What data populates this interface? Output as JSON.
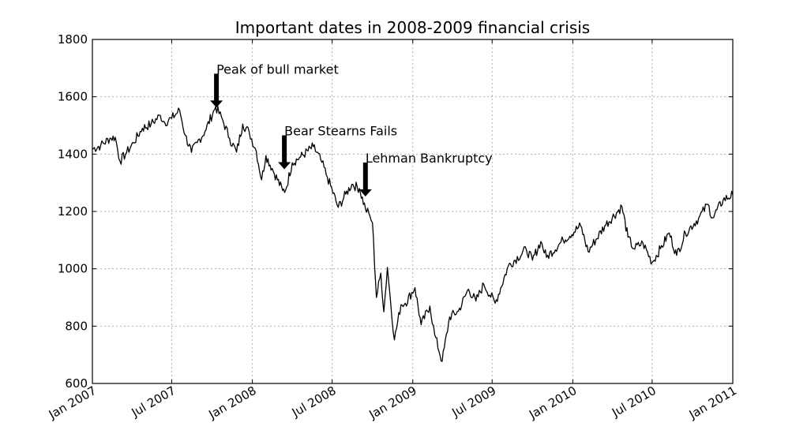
{
  "chart_data": {
    "type": "line",
    "title": "Important dates in 2008-2009 financial crisis",
    "xlabel": "",
    "ylabel": "",
    "xlim": [
      "2007-01-01",
      "2011-01-01"
    ],
    "ylim": [
      600,
      1800
    ],
    "grid": true,
    "yticks": [
      600,
      800,
      1000,
      1200,
      1400,
      1600,
      1800
    ],
    "xticks": [
      {
        "date": "2007-01-01",
        "label": "Jan 2007"
      },
      {
        "date": "2007-07-01",
        "label": "Jul 2007"
      },
      {
        "date": "2008-01-01",
        "label": "Jan 2008"
      },
      {
        "date": "2008-07-01",
        "label": "Jul 2008"
      },
      {
        "date": "2009-01-01",
        "label": "Jan 2009"
      },
      {
        "date": "2009-07-01",
        "label": "Jul 2009"
      },
      {
        "date": "2010-01-01",
        "label": "Jan 2010"
      },
      {
        "date": "2010-07-01",
        "label": "Jul 2010"
      },
      {
        "date": "2011-01-01",
        "label": "Jan 2011"
      }
    ],
    "series": [
      {
        "color": "#000000",
        "points": [
          [
            "2007-01-01",
            1418
          ],
          [
            "2007-01-20",
            1430
          ],
          [
            "2007-02-10",
            1455
          ],
          [
            "2007-02-22",
            1459
          ],
          [
            "2007-03-05",
            1375
          ],
          [
            "2007-03-20",
            1405
          ],
          [
            "2007-04-05",
            1440
          ],
          [
            "2007-04-25",
            1490
          ],
          [
            "2007-05-15",
            1505
          ],
          [
            "2007-06-05",
            1535
          ],
          [
            "2007-06-15",
            1510
          ],
          [
            "2007-07-01",
            1525
          ],
          [
            "2007-07-19",
            1553
          ],
          [
            "2007-08-01",
            1465
          ],
          [
            "2007-08-15",
            1406
          ],
          [
            "2007-08-28",
            1440
          ],
          [
            "2007-09-15",
            1480
          ],
          [
            "2007-10-09",
            1565
          ],
          [
            "2007-10-25",
            1520
          ],
          [
            "2007-11-10",
            1455
          ],
          [
            "2007-11-26",
            1407
          ],
          [
            "2007-12-10",
            1505
          ],
          [
            "2007-12-25",
            1475
          ],
          [
            "2008-01-10",
            1410
          ],
          [
            "2008-01-22",
            1310
          ],
          [
            "2008-02-01",
            1395
          ],
          [
            "2008-02-15",
            1350
          ],
          [
            "2008-03-10",
            1273
          ],
          [
            "2008-03-17",
            1275
          ],
          [
            "2008-04-01",
            1370
          ],
          [
            "2008-04-20",
            1390
          ],
          [
            "2008-05-19",
            1426
          ],
          [
            "2008-06-05",
            1380
          ],
          [
            "2008-06-20",
            1320
          ],
          [
            "2008-07-15",
            1214
          ],
          [
            "2008-08-01",
            1260
          ],
          [
            "2008-08-15",
            1295
          ],
          [
            "2008-09-01",
            1280
          ],
          [
            "2008-09-15",
            1210
          ],
          [
            "2008-09-25",
            1185
          ],
          [
            "2008-10-01",
            1160
          ],
          [
            "2008-10-10",
            900
          ],
          [
            "2008-10-20",
            985
          ],
          [
            "2008-10-27",
            850
          ],
          [
            "2008-11-04",
            1005
          ],
          [
            "2008-11-20",
            752
          ],
          [
            "2008-12-05",
            875
          ],
          [
            "2008-12-15",
            880
          ],
          [
            "2009-01-06",
            934
          ],
          [
            "2009-01-20",
            805
          ],
          [
            "2009-02-09",
            870
          ],
          [
            "2009-02-20",
            770
          ],
          [
            "2009-03-09",
            677
          ],
          [
            "2009-03-26",
            832
          ],
          [
            "2009-04-15",
            852
          ],
          [
            "2009-05-08",
            929
          ],
          [
            "2009-05-25",
            887
          ],
          [
            "2009-06-12",
            946
          ],
          [
            "2009-07-08",
            880
          ],
          [
            "2009-08-07",
            1010
          ],
          [
            "2009-09-17",
            1068
          ],
          [
            "2009-10-01",
            1030
          ],
          [
            "2009-10-20",
            1095
          ],
          [
            "2009-11-02",
            1040
          ],
          [
            "2009-12-10",
            1100
          ],
          [
            "2010-01-19",
            1150
          ],
          [
            "2010-02-05",
            1060
          ],
          [
            "2010-03-15",
            1150
          ],
          [
            "2010-04-23",
            1217
          ],
          [
            "2010-05-07",
            1110
          ],
          [
            "2010-05-20",
            1070
          ],
          [
            "2010-06-10",
            1090
          ],
          [
            "2010-07-01",
            1022
          ],
          [
            "2010-07-20",
            1070
          ],
          [
            "2010-08-09",
            1125
          ],
          [
            "2010-08-26",
            1047
          ],
          [
            "2010-09-15",
            1125
          ],
          [
            "2010-10-15",
            1176
          ],
          [
            "2010-11-05",
            1225
          ],
          [
            "2010-11-16",
            1178
          ],
          [
            "2010-12-10",
            1240
          ],
          [
            "2011-01-01",
            1258
          ]
        ]
      }
    ],
    "annotations": [
      {
        "label": "Peak of bull market",
        "date": "2007-10-11",
        "value": 1565
      },
      {
        "label": "Bear Stearns Fails",
        "date": "2008-03-14",
        "value": 1350
      },
      {
        "label": "Lehman Bankruptcy",
        "date": "2008-09-15",
        "value": 1255
      }
    ]
  }
}
